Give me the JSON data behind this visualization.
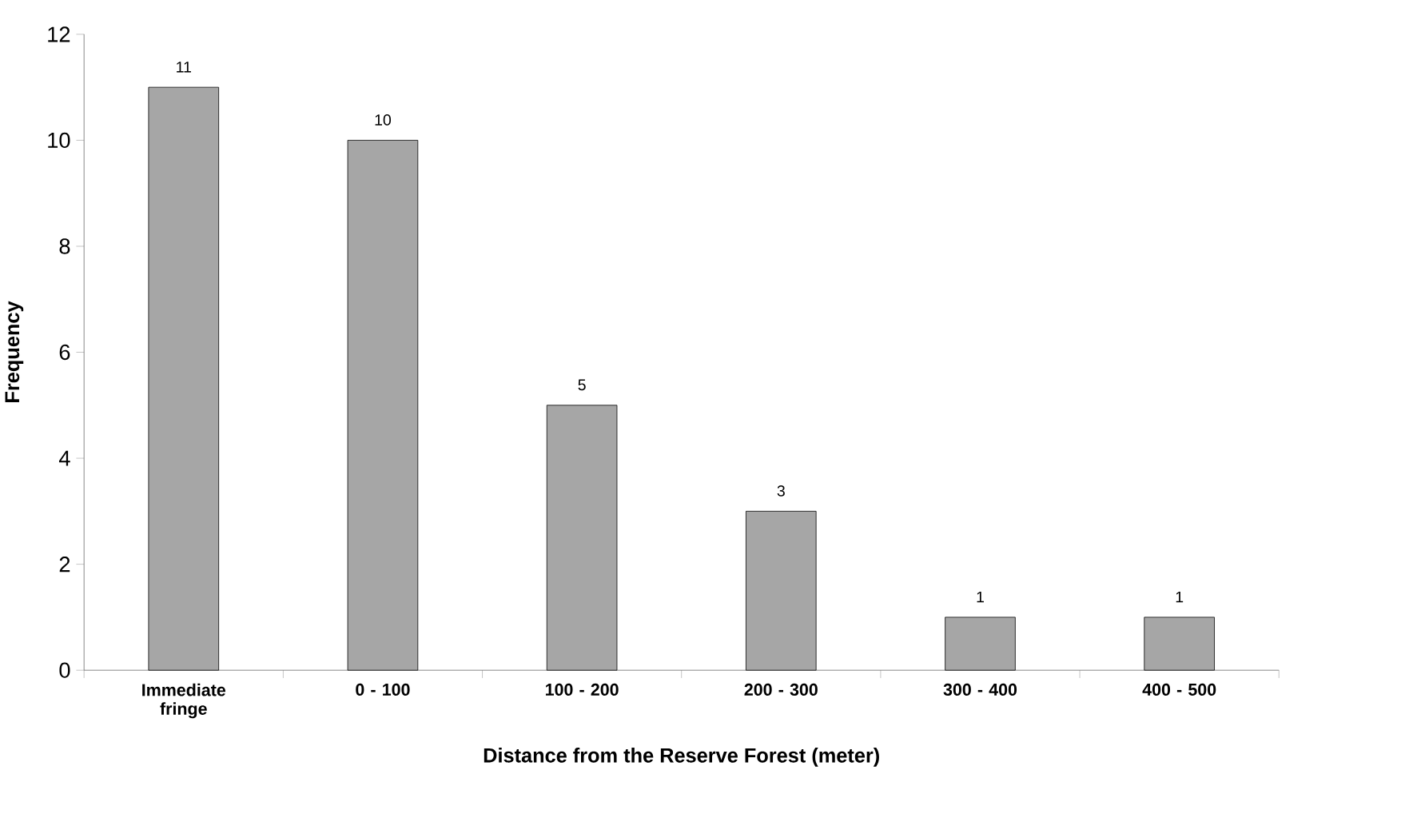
{
  "chart_data": {
    "type": "bar",
    "xlabel": "Distance from the Reserve Forest (meter)",
    "ylabel": "Frequency",
    "categories": [
      "Immediate fringe",
      "0 - 100",
      "100 - 200",
      "200 - 300",
      "300 - 400",
      "400 - 500"
    ],
    "values": [
      11,
      10,
      5,
      3,
      1,
      1
    ],
    "color": "#a6a6a6",
    "ylim": [
      0,
      12
    ],
    "yticks": [
      0,
      2,
      4,
      6,
      8,
      10,
      12
    ],
    "data_labels": true
  }
}
